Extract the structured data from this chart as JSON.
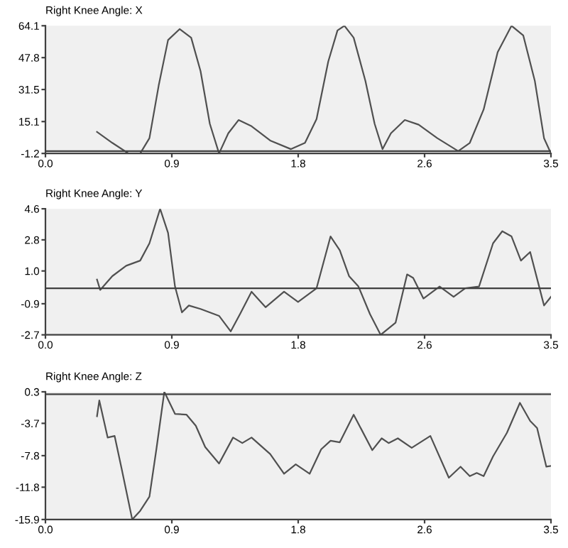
{
  "chart_data": [
    {
      "type": "line",
      "title": "Right Knee Angle: X",
      "xlim": [
        0,
        3.5
      ],
      "ylim": [
        -1.2,
        64.1
      ],
      "xticks": [
        {
          "value": 0,
          "label": "0.0"
        },
        {
          "value": 0.875,
          "label": "0.9"
        },
        {
          "value": 1.75,
          "label": "1.8"
        },
        {
          "value": 2.625,
          "label": "2.6"
        },
        {
          "value": 3.5,
          "label": "3.5"
        }
      ],
      "yticks": [
        -1.2,
        15.1,
        31.5,
        47.8,
        64.1
      ],
      "grid": false,
      "ref_lines": [
        {
          "axis": "y",
          "value": 0,
          "color": "#404040"
        }
      ],
      "series": [
        {
          "color": "#505050",
          "x": [
            0.357,
            0.463,
            0.575,
            0.656,
            0.72,
            0.784,
            0.849,
            0.929,
            1.009,
            1.074,
            1.138,
            1.202,
            1.266,
            1.337,
            1.427,
            1.556,
            1.7,
            1.797,
            1.877,
            1.958,
            2.022,
            2.07,
            2.134,
            2.215,
            2.279,
            2.334,
            2.392,
            2.488,
            2.584,
            2.713,
            2.858,
            2.938,
            3.034,
            3.131,
            3.227,
            3.308,
            3.388,
            3.452,
            3.5
          ],
          "values": [
            9.8,
            4.2,
            -1.2,
            -1.2,
            6.6,
            33.5,
            56.8,
            62.4,
            58.0,
            40.9,
            14.0,
            -1.2,
            9.1,
            15.9,
            12.7,
            5.4,
            1.0,
            4.2,
            16.4,
            45.8,
            61.7,
            64.1,
            58.0,
            36.0,
            14.0,
            1.0,
            9.1,
            15.9,
            13.5,
            6.6,
            0.0,
            4.2,
            21.3,
            50.6,
            64.1,
            59.2,
            36.0,
            6.6,
            -1.2
          ]
        }
      ]
    },
    {
      "type": "line",
      "title": "Right Knee Angle: Y",
      "xlim": [
        0,
        3.5
      ],
      "ylim": [
        -2.7,
        4.6
      ],
      "xticks": [
        {
          "value": 0,
          "label": "0.0"
        },
        {
          "value": 0.875,
          "label": "0.9"
        },
        {
          "value": 1.75,
          "label": "1.8"
        },
        {
          "value": 2.625,
          "label": "2.6"
        },
        {
          "value": 3.5,
          "label": "3.5"
        }
      ],
      "yticks": [
        -2.7,
        -0.9,
        {
          "value": 1,
          "label": "1.0"
        },
        2.8,
        4.6
      ],
      "grid": false,
      "ref_lines": [
        {
          "axis": "y",
          "value": 0,
          "color": "#404040"
        }
      ],
      "series": [
        {
          "color": "#505050",
          "x": [
            0.357,
            0.379,
            0.463,
            0.559,
            0.656,
            0.72,
            0.794,
            0.849,
            0.897,
            0.945,
            0.993,
            1.074,
            1.202,
            1.283,
            1.347,
            1.427,
            1.524,
            1.652,
            1.749,
            1.877,
            1.974,
            2.038,
            2.102,
            2.167,
            2.247,
            2.321,
            2.424,
            2.504,
            2.546,
            2.617,
            2.729,
            2.826,
            2.906,
            3.002,
            3.099,
            3.163,
            3.227,
            3.292,
            3.356,
            3.452,
            3.5
          ],
          "values": [
            0.5,
            -0.1,
            0.7,
            1.3,
            1.6,
            2.6,
            4.6,
            3.2,
            0.1,
            -1.4,
            -1.0,
            -1.2,
            -1.6,
            -2.5,
            -1.5,
            -0.2,
            -1.1,
            -0.2,
            -0.8,
            0.0,
            3.0,
            2.2,
            0.7,
            0.1,
            -1.5,
            -2.7,
            -2.0,
            0.8,
            0.6,
            -0.6,
            0.1,
            -0.5,
            0.0,
            0.1,
            2.6,
            3.3,
            3.0,
            1.6,
            2.1,
            -1.0,
            -0.5
          ]
        }
      ]
    },
    {
      "type": "line",
      "title": "Right Knee Angle: Z",
      "xlim": [
        0,
        3.5
      ],
      "ylim": [
        -15.9,
        0.3
      ],
      "xticks": [
        {
          "value": 0,
          "label": "0.0"
        },
        {
          "value": 0.875,
          "label": "0.9"
        },
        {
          "value": 1.75,
          "label": "1.8"
        },
        {
          "value": 2.625,
          "label": "2.6"
        },
        {
          "value": 3.5,
          "label": "3.5"
        }
      ],
      "yticks": [
        -15.9,
        -11.8,
        -7.8,
        -3.7,
        0.3
      ],
      "grid": false,
      "ref_lines": [
        {
          "axis": "y",
          "value": 0,
          "color": "#404040"
        }
      ],
      "series": [
        {
          "color": "#505050",
          "x": [
            0.357,
            0.373,
            0.431,
            0.479,
            0.527,
            0.601,
            0.656,
            0.72,
            0.768,
            0.823,
            0.897,
            0.977,
            1.041,
            1.106,
            1.202,
            1.299,
            1.363,
            1.427,
            1.556,
            1.652,
            1.733,
            1.829,
            1.909,
            1.974,
            2.038,
            2.134,
            2.263,
            2.328,
            2.376,
            2.44,
            2.536,
            2.665,
            2.793,
            2.874,
            2.938,
            2.986,
            3.034,
            3.099,
            3.195,
            3.285,
            3.356,
            3.404,
            3.468,
            3.5
          ],
          "values": [
            -2.8,
            -0.8,
            -5.5,
            -5.3,
            -9.4,
            -15.9,
            -14.8,
            -13.0,
            -7.0,
            0.3,
            -2.5,
            -2.6,
            -4.0,
            -6.7,
            -8.8,
            -5.5,
            -6.2,
            -5.5,
            -7.6,
            -10.1,
            -8.9,
            -10.1,
            -7.0,
            -5.9,
            -6.1,
            -2.6,
            -7.1,
            -5.6,
            -6.2,
            -5.6,
            -6.8,
            -5.3,
            -10.6,
            -9.2,
            -10.4,
            -10.0,
            -10.4,
            -7.9,
            -4.9,
            -1.1,
            -3.4,
            -4.3,
            -9.2,
            -9.1
          ]
        }
      ]
    }
  ]
}
